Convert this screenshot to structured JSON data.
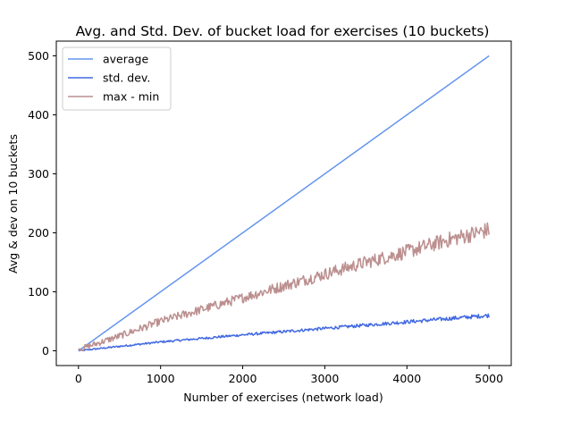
{
  "chart_data": {
    "type": "line",
    "title": "Avg. and Std. Dev. of bucket load for exercises (10 buckets)",
    "xlabel": "Number of exercises (network load)",
    "ylabel": "Avg & dev on 10 buckets",
    "xlim": [
      -270,
      5270
    ],
    "ylim": [
      -25,
      525
    ],
    "x_ticks": [
      0,
      1000,
      2000,
      3000,
      4000,
      5000
    ],
    "y_ticks": [
      0,
      100,
      200,
      300,
      400,
      500
    ],
    "grid": false,
    "legend_position": "top-left",
    "x_range": [
      0,
      5000
    ],
    "series": [
      {
        "name": "average",
        "color": "#6495ED",
        "trend": [
          [
            0,
            0
          ],
          [
            5000,
            500
          ]
        ],
        "noise": 0
      },
      {
        "name": "std. dev.",
        "color": "#4169E1",
        "trend": [
          [
            0,
            0
          ],
          [
            1000,
            15
          ],
          [
            2000,
            27
          ],
          [
            3000,
            38
          ],
          [
            4000,
            49
          ],
          [
            5000,
            60
          ]
        ],
        "noise": 2.5
      },
      {
        "name": "max - min",
        "color": "#BC8F8F",
        "trend": [
          [
            0,
            2
          ],
          [
            500,
            25
          ],
          [
            1000,
            50
          ],
          [
            1500,
            70
          ],
          [
            2000,
            90
          ],
          [
            2500,
            110
          ],
          [
            3000,
            130
          ],
          [
            3500,
            150
          ],
          [
            4000,
            168
          ],
          [
            4500,
            188
          ],
          [
            5000,
            205
          ]
        ],
        "noise": 10
      }
    ]
  }
}
